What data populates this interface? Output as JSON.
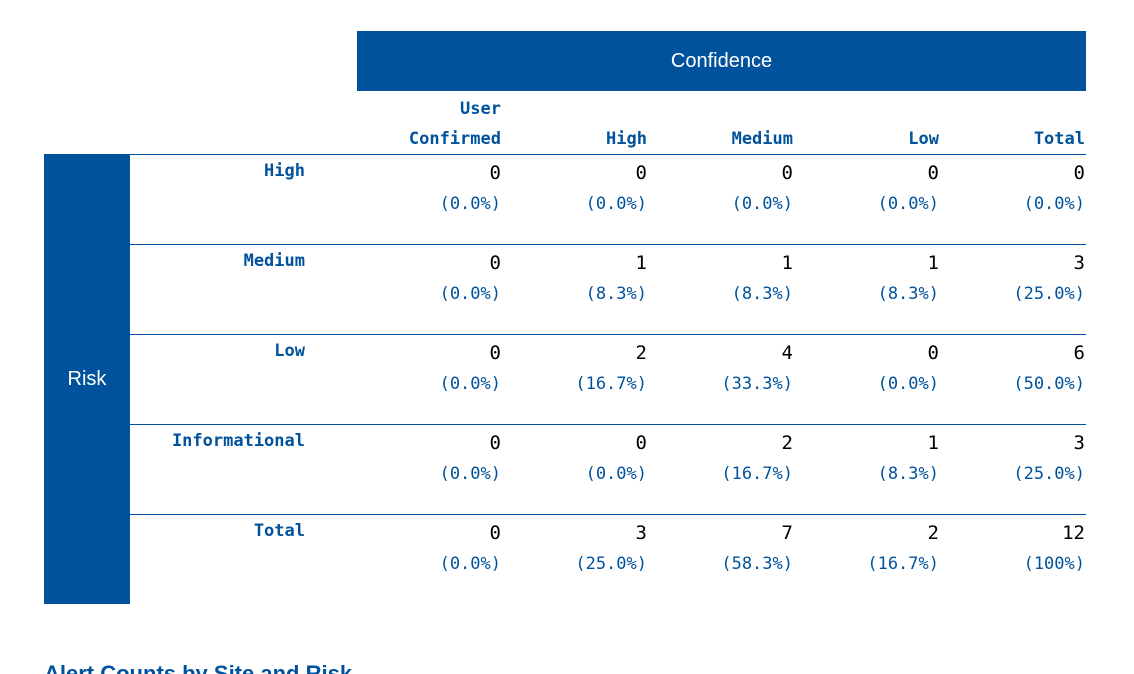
{
  "table": {
    "confidence_header": "Confidence",
    "risk_header": "Risk",
    "columns": [
      {
        "line1": "User",
        "line2": "Confirmed"
      },
      {
        "line1": "",
        "line2": "High"
      },
      {
        "line1": "",
        "line2": "Medium"
      },
      {
        "line1": "",
        "line2": "Low"
      },
      {
        "line1": "",
        "line2": "Total"
      }
    ],
    "rows": [
      {
        "label": "High",
        "cells": [
          {
            "count": "0",
            "pct": "(0.0%)"
          },
          {
            "count": "0",
            "pct": "(0.0%)"
          },
          {
            "count": "0",
            "pct": "(0.0%)"
          },
          {
            "count": "0",
            "pct": "(0.0%)"
          },
          {
            "count": "0",
            "pct": "(0.0%)"
          }
        ]
      },
      {
        "label": "Medium",
        "cells": [
          {
            "count": "0",
            "pct": "(0.0%)"
          },
          {
            "count": "1",
            "pct": "(8.3%)"
          },
          {
            "count": "1",
            "pct": "(8.3%)"
          },
          {
            "count": "1",
            "pct": "(8.3%)"
          },
          {
            "count": "3",
            "pct": "(25.0%)"
          }
        ]
      },
      {
        "label": "Low",
        "cells": [
          {
            "count": "0",
            "pct": "(0.0%)"
          },
          {
            "count": "2",
            "pct": "(16.7%)"
          },
          {
            "count": "4",
            "pct": "(33.3%)"
          },
          {
            "count": "0",
            "pct": "(0.0%)"
          },
          {
            "count": "6",
            "pct": "(50.0%)"
          }
        ]
      },
      {
        "label": "Informational",
        "cells": [
          {
            "count": "0",
            "pct": "(0.0%)"
          },
          {
            "count": "0",
            "pct": "(0.0%)"
          },
          {
            "count": "2",
            "pct": "(16.7%)"
          },
          {
            "count": "1",
            "pct": "(8.3%)"
          },
          {
            "count": "3",
            "pct": "(25.0%)"
          }
        ]
      },
      {
        "label": "Total",
        "cells": [
          {
            "count": "0",
            "pct": "(0.0%)"
          },
          {
            "count": "3",
            "pct": "(25.0%)"
          },
          {
            "count": "7",
            "pct": "(58.3%)"
          },
          {
            "count": "2",
            "pct": "(16.7%)"
          },
          {
            "count": "12",
            "pct": "(100%)"
          }
        ]
      }
    ]
  },
  "next_section_heading": "Alert Counts by Site and Risk",
  "colors": {
    "accent": "#00529c",
    "text": "#000000",
    "background": "#ffffff"
  }
}
